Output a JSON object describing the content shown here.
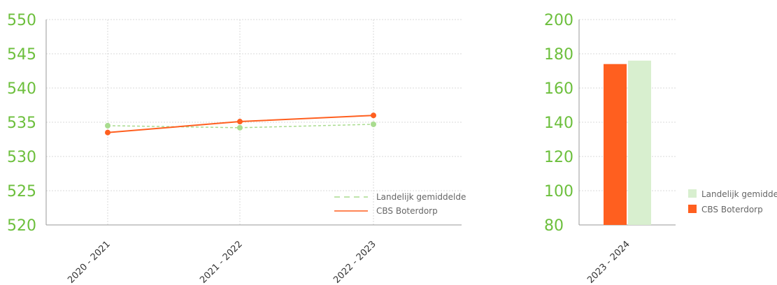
{
  "colors": {
    "school": "#ff5f1f",
    "national_line": "#a9dc8f",
    "national_bar": "#d8efcf",
    "tick": "#6cbf3c",
    "grid": "#d9d9d9",
    "axis": "#999999"
  },
  "chart_data": [
    {
      "type": "line",
      "categories": [
        "2020 - 2021",
        "2021 - 2022",
        "2022 - 2023"
      ],
      "ylim": [
        520,
        550
      ],
      "yticks": [
        "520",
        "525",
        "530",
        "535",
        "540",
        "545",
        "550"
      ],
      "grid": true,
      "legend_position": "bottom-right",
      "series": [
        {
          "name": "Landelijk gemiddelde",
          "style": "dashed",
          "values": [
            534.5,
            534.2,
            534.7
          ]
        },
        {
          "name": "CBS Boterdorp",
          "style": "solid",
          "values": [
            533.5,
            535.1,
            536.0
          ]
        }
      ]
    },
    {
      "type": "bar",
      "categories": [
        "2023 - 2024"
      ],
      "ylim": [
        80,
        200
      ],
      "yticks": [
        "80",
        "100",
        "120",
        "140",
        "160",
        "180",
        "200"
      ],
      "grid": true,
      "legend_position": "right",
      "series": [
        {
          "name": "CBS Boterdorp",
          "values": [
            174
          ]
        },
        {
          "name": "Landelijk gemiddelde",
          "values": [
            176
          ]
        }
      ],
      "legend_order": [
        "Landelijk gemiddelde",
        "CBS Boterdorp"
      ]
    }
  ]
}
